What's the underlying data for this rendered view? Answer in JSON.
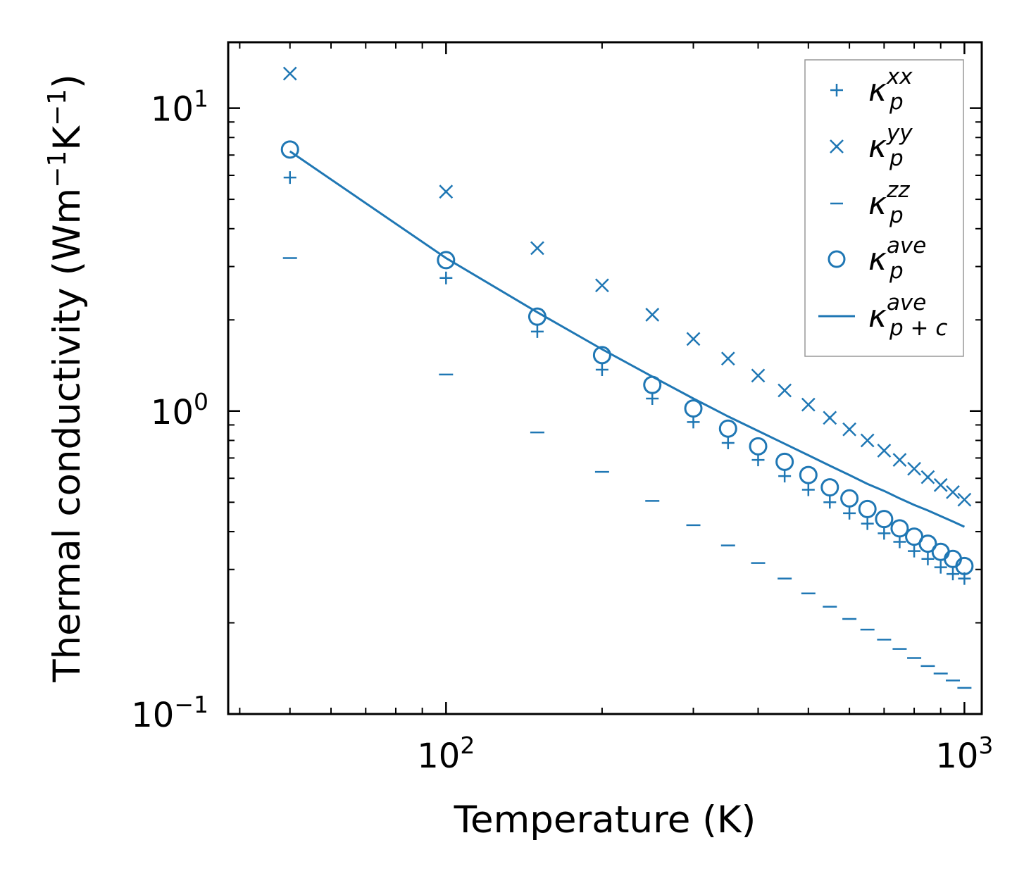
{
  "chart_data": {
    "type": "scatter",
    "x_scale": "log",
    "y_scale": "log",
    "xlabel": "Temperature (K)",
    "ylabel": {
      "prefix": "Thermal conductivity (Wm",
      "exp1": "−1",
      "mid": "K",
      "exp2": "−1",
      "suffix": ")"
    },
    "xlim": [
      38,
      1080
    ],
    "ylim": [
      0.1,
      16.5
    ],
    "x_ticks": [
      {
        "value": 100,
        "base": "10",
        "exp": "2"
      },
      {
        "value": 1000,
        "base": "10",
        "exp": "3"
      }
    ],
    "y_ticks": [
      {
        "value": 0.1,
        "base": "10",
        "exp": "−1"
      },
      {
        "value": 1,
        "base": "10",
        "exp": "0"
      },
      {
        "value": 10,
        "base": "10",
        "exp": "1"
      }
    ],
    "grid": false,
    "legend_position": "top-right",
    "color": "#1f77b4",
    "x": [
      50,
      100,
      150,
      200,
      250,
      300,
      350,
      400,
      450,
      500,
      550,
      600,
      650,
      700,
      750,
      800,
      850,
      900,
      950,
      1000
    ],
    "series": [
      {
        "name": "kappa_p_xx",
        "label": {
          "base": "κ",
          "sub": "p",
          "sup": "xx"
        },
        "marker": "plus",
        "values": [
          5.9,
          2.75,
          1.83,
          1.37,
          1.1,
          0.92,
          0.785,
          0.69,
          0.61,
          0.55,
          0.5,
          0.46,
          0.425,
          0.395,
          0.37,
          0.345,
          0.325,
          0.305,
          0.29,
          0.28
        ]
      },
      {
        "name": "kappa_p_yy",
        "label": {
          "base": "κ",
          "sub": "p",
          "sup": "yy"
        },
        "marker": "x",
        "values": [
          13.0,
          5.3,
          3.45,
          2.6,
          2.08,
          1.73,
          1.49,
          1.31,
          1.17,
          1.05,
          0.95,
          0.87,
          0.8,
          0.74,
          0.69,
          0.645,
          0.605,
          0.57,
          0.54,
          0.51
        ]
      },
      {
        "name": "kappa_p_zz",
        "label": {
          "base": "κ",
          "sub": "p",
          "sup": "zz"
        },
        "marker": "hline",
        "values": [
          3.2,
          1.32,
          0.85,
          0.63,
          0.505,
          0.42,
          0.36,
          0.315,
          0.28,
          0.25,
          0.226,
          0.206,
          0.19,
          0.176,
          0.164,
          0.153,
          0.144,
          0.136,
          0.129,
          0.122
        ]
      },
      {
        "name": "kappa_p_ave",
        "label": {
          "base": "κ",
          "sub": "p",
          "sup": "ave"
        },
        "marker": "circle",
        "values": [
          7.3,
          3.15,
          2.05,
          1.53,
          1.22,
          1.02,
          0.875,
          0.765,
          0.68,
          0.615,
          0.56,
          0.515,
          0.475,
          0.44,
          0.41,
          0.385,
          0.365,
          0.343,
          0.325,
          0.308
        ]
      },
      {
        "name": "kappa_p_plus_c_ave",
        "label": {
          "base": "κ",
          "sub": "p + c",
          "sup": "ave"
        },
        "marker": "line",
        "values": [
          7.2,
          3.2,
          2.12,
          1.6,
          1.3,
          1.1,
          0.96,
          0.86,
          0.78,
          0.715,
          0.66,
          0.615,
          0.575,
          0.545,
          0.515,
          0.49,
          0.47,
          0.45,
          0.432,
          0.415
        ]
      }
    ]
  }
}
